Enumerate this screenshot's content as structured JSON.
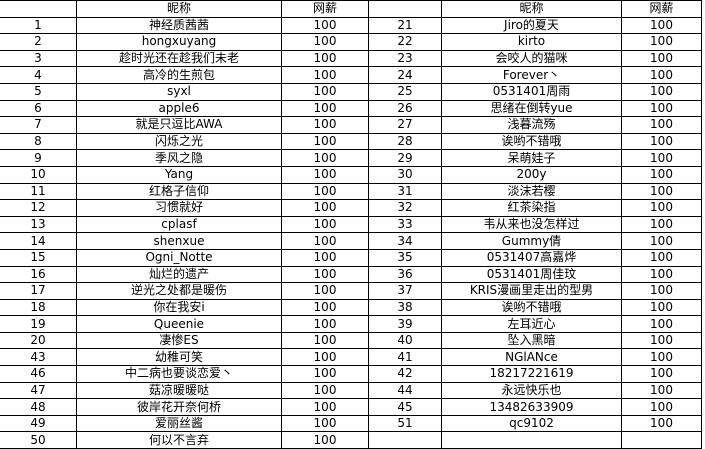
{
  "header": {
    "index": "",
    "name": "昵称",
    "salary": "网薪"
  },
  "left": [
    [
      "1",
      "神经质茜茜",
      "100"
    ],
    [
      "2",
      "hongxuyang",
      "100"
    ],
    [
      "3",
      "趁时光还在趁我们未老",
      "100"
    ],
    [
      "4",
      "高冷的生煎包",
      "100"
    ],
    [
      "5",
      "syxl",
      "100"
    ],
    [
      "6",
      "apple6",
      "100"
    ],
    [
      "7",
      "就是只逗比AWA",
      "100"
    ],
    [
      "8",
      "闪烁之光",
      "100"
    ],
    [
      "9",
      "季风之隐",
      "100"
    ],
    [
      "10",
      "Yang",
      "100"
    ],
    [
      "11",
      "红格子信仰",
      "100"
    ],
    [
      "12",
      "习惯就好",
      "100"
    ],
    [
      "13",
      "cplasf",
      "100"
    ],
    [
      "14",
      "shenxue",
      "100"
    ],
    [
      "15",
      "Ogni_Notte",
      "100"
    ],
    [
      "16",
      "灿烂的遗产",
      "100"
    ],
    [
      "17",
      "逆光之处都是暖伤",
      "100"
    ],
    [
      "18",
      "你在我安i",
      "100"
    ],
    [
      "19",
      "Queenie",
      "100"
    ],
    [
      "20",
      "凄惨ES",
      "100"
    ],
    [
      "43",
      "幼稚可笑",
      "100"
    ],
    [
      "46",
      "中二病也要谈恋爱丶",
      "100"
    ],
    [
      "47",
      "菇凉暖暖哒",
      "100"
    ],
    [
      "48",
      "彼岸花开奈何桥",
      "100"
    ],
    [
      "49",
      "爱丽丝酱",
      "100"
    ],
    [
      "50",
      "何以不言弃",
      "100"
    ]
  ],
  "right": [
    [
      "21",
      "Jiro的夏天",
      "100"
    ],
    [
      "22",
      "kirto",
      "100"
    ],
    [
      "23",
      "会咬人的猫咪",
      "100"
    ],
    [
      "24",
      "Forever丶",
      "100"
    ],
    [
      "25",
      "0531401周雨",
      "100"
    ],
    [
      "26",
      "思绪在倒转yue",
      "100"
    ],
    [
      "27",
      "浅暮流殇",
      "100"
    ],
    [
      "28",
      "诶哟不错哦",
      "100"
    ],
    [
      "29",
      "呆萌娃子",
      "100"
    ],
    [
      "30",
      "200y",
      "100"
    ],
    [
      "31",
      "淡沫若樱",
      "100"
    ],
    [
      "32",
      "红茶染指",
      "100"
    ],
    [
      "33",
      "韦从来也没怎样过",
      "100"
    ],
    [
      "34",
      "Gummy倩",
      "100"
    ],
    [
      "35",
      "0531407高嘉烨",
      "100"
    ],
    [
      "36",
      "0531401周佳玟",
      "100"
    ],
    [
      "37",
      "KRIS漫画里走出的型男",
      "100"
    ],
    [
      "38",
      "诶哟不错哦",
      "100"
    ],
    [
      "39",
      "左耳近心",
      "100"
    ],
    [
      "40",
      "坠入黑暗",
      "100"
    ],
    [
      "41",
      "NGlANce",
      "100"
    ],
    [
      "42",
      "18217221619",
      "100"
    ],
    [
      "44",
      "永远快乐也",
      "100"
    ],
    [
      "45",
      "13482633909",
      "100"
    ],
    [
      "51",
      "qc9102",
      "100"
    ],
    [
      "",
      "",
      ""
    ]
  ]
}
